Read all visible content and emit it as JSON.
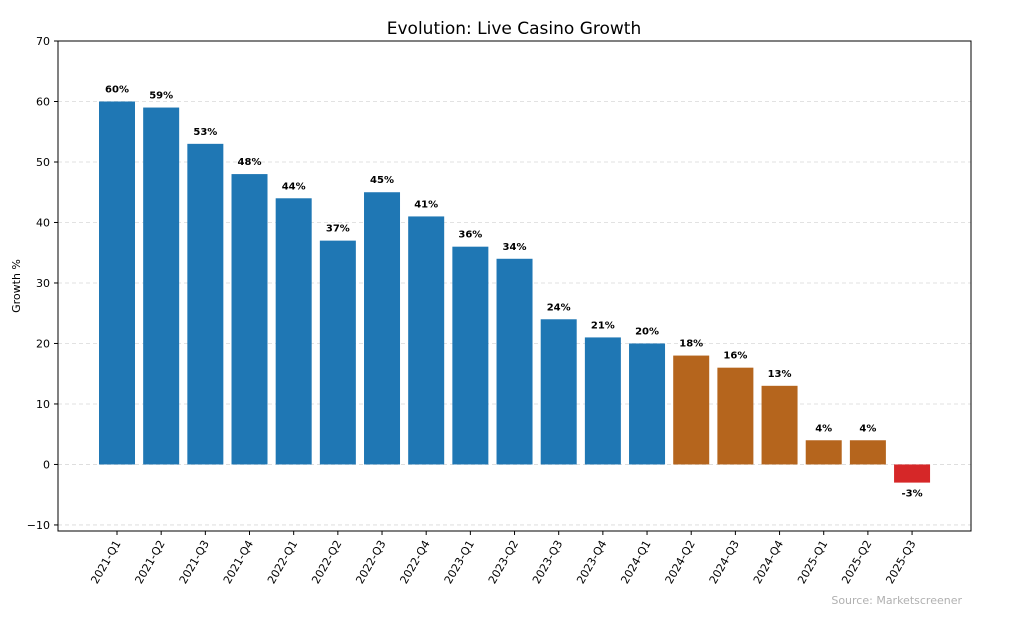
{
  "chart_data": {
    "type": "bar",
    "title": "Evolution: Live Casino Growth",
    "xlabel": "",
    "ylabel": "Growth %",
    "ylim": [
      -11,
      70
    ],
    "yticks": [
      -10,
      0,
      10,
      20,
      30,
      40,
      50,
      60,
      70
    ],
    "grid": true,
    "categories": [
      "2021-Q1",
      "2021-Q2",
      "2021-Q3",
      "2021-Q4",
      "2022-Q1",
      "2022-Q2",
      "2022-Q3",
      "2022-Q4",
      "2023-Q1",
      "2023-Q2",
      "2023-Q3",
      "2023-Q4",
      "2024-Q1",
      "2024-Q2",
      "2024-Q3",
      "2024-Q4",
      "2025-Q1",
      "2025-Q2",
      "2025-Q3"
    ],
    "values": [
      60,
      59,
      53,
      48,
      44,
      37,
      45,
      41,
      36,
      34,
      24,
      21,
      20,
      18,
      16,
      13,
      4,
      4,
      -3
    ],
    "data_labels": [
      "60%",
      "59%",
      "53%",
      "48%",
      "44%",
      "37%",
      "45%",
      "41%",
      "36%",
      "34%",
      "24%",
      "21%",
      "20%",
      "18%",
      "16%",
      "13%",
      "4%",
      "4%",
      "-3%"
    ],
    "bar_colors": [
      "#1f77b4",
      "#1f77b4",
      "#1f77b4",
      "#1f77b4",
      "#1f77b4",
      "#1f77b4",
      "#1f77b4",
      "#1f77b4",
      "#1f77b4",
      "#1f77b4",
      "#1f77b4",
      "#1f77b4",
      "#1f77b4",
      "#b5651d",
      "#b5651d",
      "#b5651d",
      "#b5651d",
      "#b5651d",
      "#d62728"
    ],
    "source": "Source: Marketscreener"
  }
}
